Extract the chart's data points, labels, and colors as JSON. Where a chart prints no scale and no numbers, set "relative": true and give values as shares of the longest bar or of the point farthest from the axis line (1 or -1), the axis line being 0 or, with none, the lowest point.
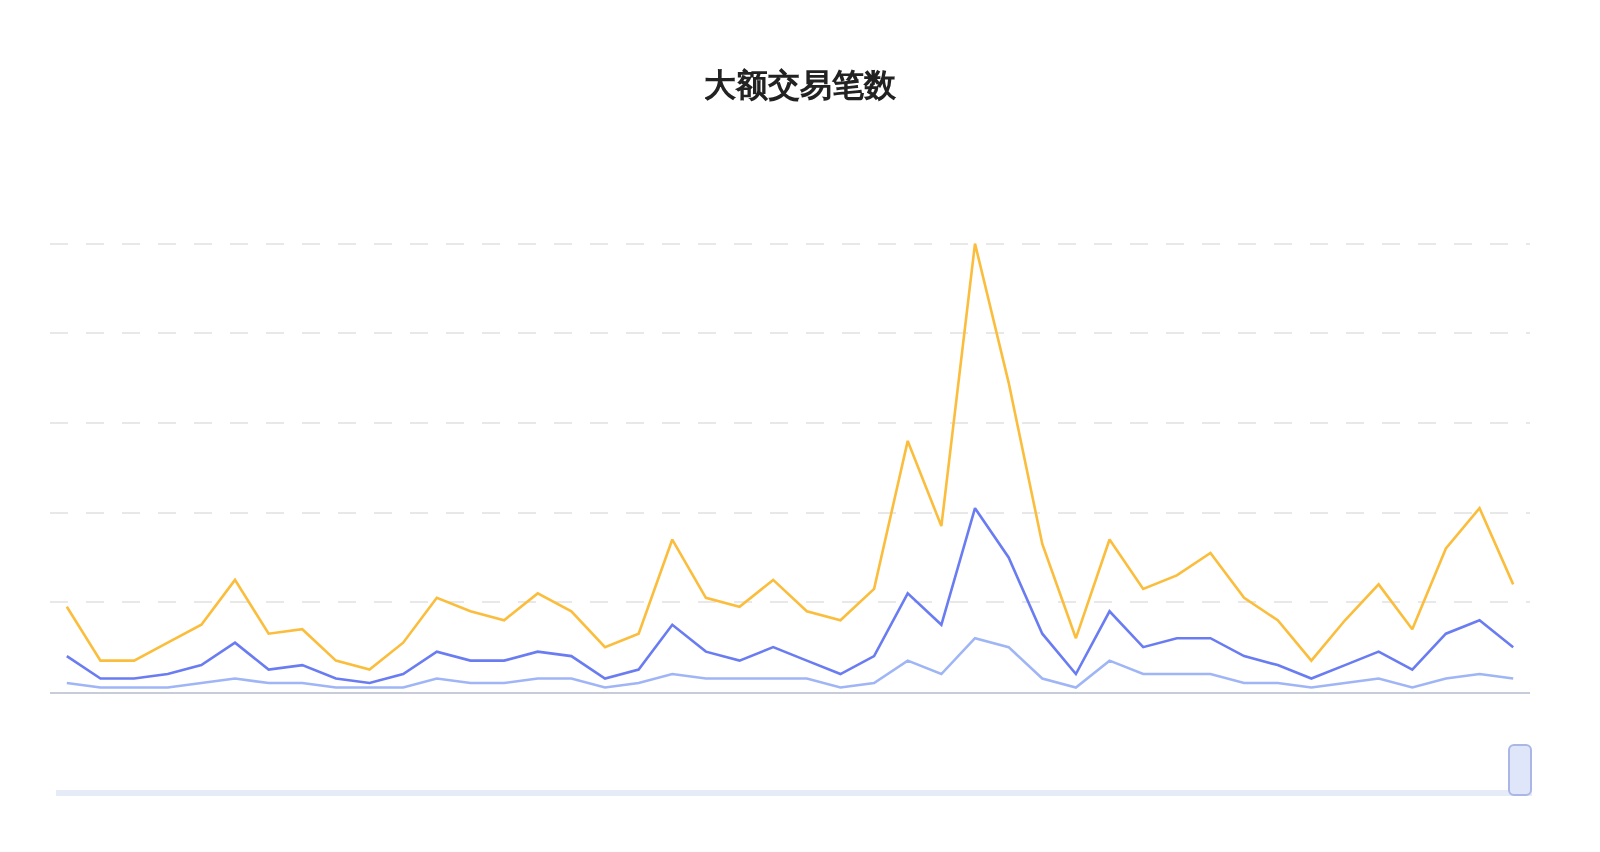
{
  "chart_data": {
    "type": "line",
    "title": "大额交易笔数",
    "relative": true,
    "grid": "y",
    "marker": "none",
    "line_style": "solid",
    "categories": [
      null,
      null,
      null,
      null,
      null,
      null,
      null,
      null,
      null,
      null,
      null,
      null,
      null,
      null,
      null,
      null,
      null,
      null,
      null,
      null,
      null,
      null,
      null,
      null,
      null,
      null,
      null,
      null,
      null,
      null,
      null,
      null,
      null,
      null,
      null,
      null,
      null,
      null,
      null,
      null,
      null,
      null,
      null,
      null
    ],
    "series": [
      {
        "color": "#fbbd3c",
        "values": [
          0.19,
          0.07,
          0.07,
          0.11,
          0.15,
          0.25,
          0.13,
          0.14,
          0.07,
          0.05,
          0.11,
          0.21,
          0.18,
          0.16,
          0.22,
          0.18,
          0.1,
          0.13,
          0.34,
          0.21,
          0.19,
          0.25,
          0.18,
          0.16,
          0.23,
          0.56,
          0.37,
          1,
          0.69,
          0.33,
          0.12,
          0.34,
          0.23,
          0.26,
          0.31,
          0.21,
          0.16,
          0.07,
          0.16,
          0.24,
          0.14,
          0.32,
          0.41,
          0.24
        ]
      },
      {
        "color": "#6a7cf2",
        "values": [
          0.08,
          0.03,
          0.03,
          0.04,
          0.06,
          0.11,
          0.05,
          0.06,
          0.03,
          0.02,
          0.04,
          0.09,
          0.07,
          0.07,
          0.09,
          0.08,
          0.03,
          0.05,
          0.15,
          0.09,
          0.07,
          0.1,
          0.07,
          0.04,
          0.08,
          0.22,
          0.15,
          0.41,
          0.3,
          0.13,
          0.04,
          0.18,
          0.1,
          0.12,
          0.12,
          0.08,
          0.06,
          0.03,
          0.06,
          0.09,
          0.05,
          0.13,
          0.16,
          0.1
        ]
      },
      {
        "color": "#9fb5f6",
        "values": [
          0.02,
          0.01,
          0.01,
          0.01,
          0.02,
          0.03,
          0.02,
          0.02,
          0.01,
          0.01,
          0.01,
          0.03,
          0.02,
          0.02,
          0.03,
          0.03,
          0.01,
          0.02,
          0.04,
          0.03,
          0.03,
          0.03,
          0.03,
          0.01,
          0.02,
          0.07,
          0.04,
          0.12,
          0.1,
          0.03,
          0.01,
          0.07,
          0.04,
          0.04,
          0.04,
          0.02,
          0.02,
          0.01,
          0.02,
          0.03,
          0.01,
          0.03,
          0.04,
          0.03
        ]
      }
    ]
  }
}
